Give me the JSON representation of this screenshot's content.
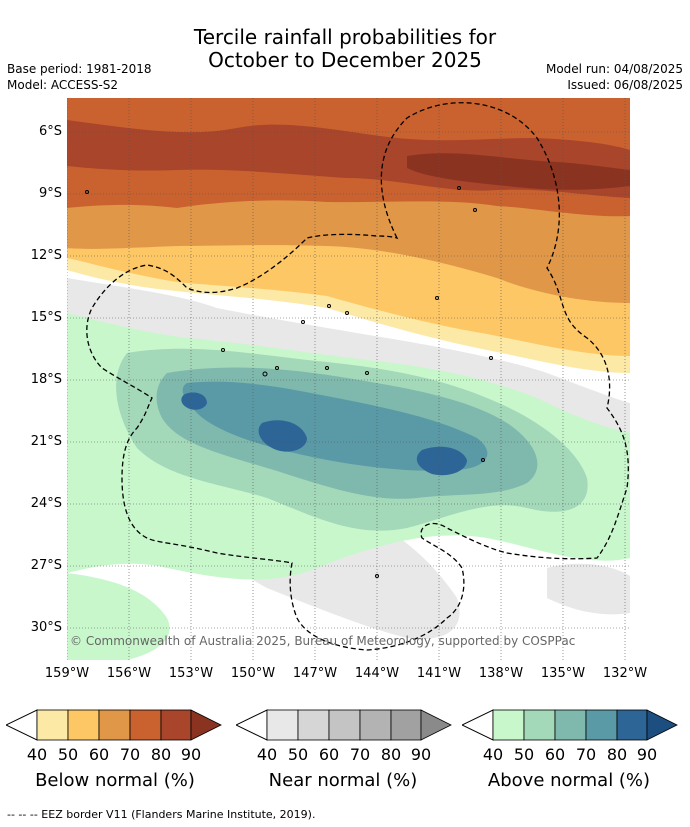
{
  "title": {
    "line1": "Tercile rainfall probabilities for",
    "line2": "October to December 2025"
  },
  "meta": {
    "base_period": "Base period: 1981-2018",
    "model": "Model: ACCESS-S2",
    "model_run": "Model run: 04/08/2025",
    "issued": "Issued: 06/08/2025"
  },
  "lat_labels": [
    "6°S",
    "9°S",
    "12°S",
    "15°S",
    "18°S",
    "21°S",
    "24°S",
    "27°S",
    "30°S"
  ],
  "lon_labels": [
    "159°W",
    "156°W",
    "153°W",
    "150°W",
    "147°W",
    "144°W",
    "141°W",
    "138°W",
    "135°W",
    "132°W"
  ],
  "copyright": "© Commonwealth of Australia 2025, Bureau of Meteorology, supported by COSPPac",
  "legends": [
    {
      "title": "Below normal (%)",
      "ticks": [
        "40",
        "50",
        "60",
        "70",
        "80",
        "90"
      ],
      "colors": [
        "#fde9a6",
        "#fdc765",
        "#e09748",
        "#c9622f",
        "#a8452a",
        "#8a3320"
      ]
    },
    {
      "title": "Near normal (%)",
      "ticks": [
        "40",
        "50",
        "60",
        "70",
        "80",
        "90"
      ],
      "colors": [
        "#e8e8e8",
        "#d6d6d6",
        "#c4c4c4",
        "#b3b3b3",
        "#a1a1a1",
        "#8a8a8a"
      ]
    },
    {
      "title": "Above normal (%)",
      "ticks": [
        "40",
        "50",
        "60",
        "70",
        "80",
        "90"
      ],
      "colors": [
        "#c8f7cc",
        "#a3d8b9",
        "#7fb9ad",
        "#5a9aa6",
        "#2e6597",
        "#1c4f80"
      ]
    }
  ],
  "footnote": "--  --  -- EEZ border V11 (Flanders Marine Institute, 2019)."
}
